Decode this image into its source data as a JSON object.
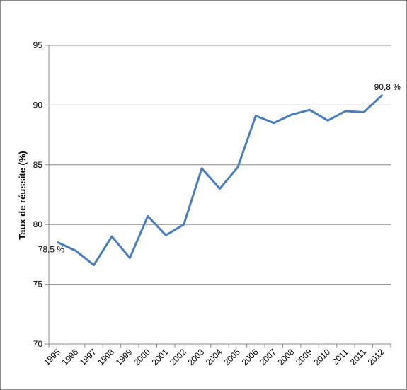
{
  "chart_data": {
    "type": "line",
    "title": "",
    "xlabel": "",
    "ylabel": "Taux de réussite (%)",
    "ylim": [
      70,
      95
    ],
    "yticks": [
      "70",
      "75",
      "80",
      "85",
      "90",
      "95"
    ],
    "categories": [
      "1995",
      "1996",
      "1997",
      "1998",
      "1999",
      "2000",
      "2001",
      "2002",
      "2003",
      "2004",
      "2005",
      "2006",
      "2007",
      "2008",
      "2009",
      "2010",
      "2011",
      "2011",
      "2012"
    ],
    "series": [
      {
        "values": [
          78.5,
          77.8,
          76.6,
          79.0,
          77.2,
          80.7,
          79.1,
          80.0,
          84.7,
          83.0,
          84.8,
          89.1,
          88.5,
          89.2,
          89.6,
          88.7,
          89.5,
          89.4,
          90.8
        ],
        "color": "#4a7ebb"
      }
    ],
    "data_labels": [
      {
        "index": 0,
        "text": "78,5 %"
      },
      {
        "index": 18,
        "text": "90,8 %"
      }
    ],
    "grid": true,
    "legend": "none"
  }
}
